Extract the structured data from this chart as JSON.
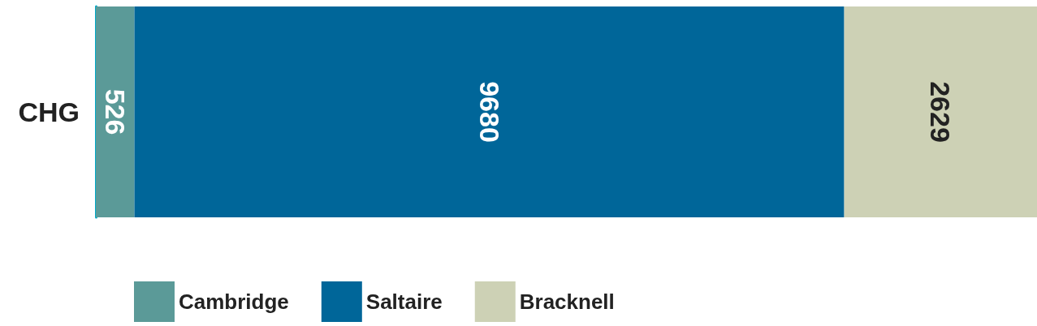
{
  "chart_data": {
    "type": "bar",
    "orientation": "horizontal",
    "stacked": true,
    "categories": [
      "CHG"
    ],
    "series": [
      {
        "name": "Cambridge",
        "color": "#5b9a98",
        "values": [
          526
        ]
      },
      {
        "name": "Saltaire",
        "color": "#006699",
        "values": [
          9680
        ]
      },
      {
        "name": "Bracknell",
        "color": "#cdd1b5",
        "values": [
          2629
        ]
      }
    ],
    "data_labels": true,
    "legend": "bottom"
  }
}
